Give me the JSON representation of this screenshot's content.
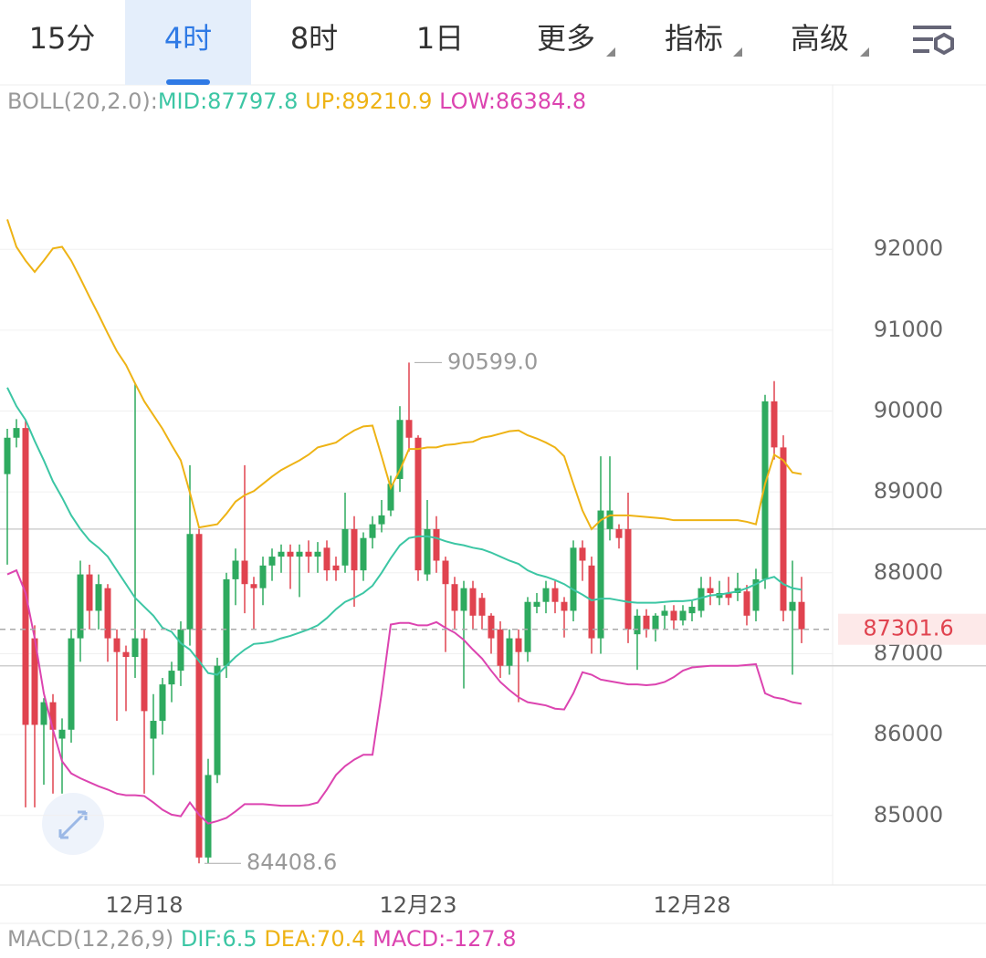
{
  "tabs": {
    "items": [
      "15分",
      "4时",
      "8时",
      "1日",
      "更多",
      "指标",
      "高级"
    ],
    "active": 1
  },
  "chart_data": {
    "type": "candlestick",
    "indicator_label": "BOLL(20,2.0):",
    "categories": [
      null,
      null,
      null,
      null,
      null,
      null,
      null,
      null,
      null,
      null,
      null,
      null,
      null,
      null,
      null,
      "12月18",
      null,
      null,
      null,
      null,
      null,
      null,
      null,
      null,
      null,
      null,
      null,
      null,
      null,
      null,
      null,
      null,
      null,
      null,
      null,
      null,
      null,
      null,
      null,
      null,
      null,
      null,
      null,
      null,
      null,
      "12月23",
      null,
      null,
      null,
      null,
      null,
      null,
      null,
      null,
      null,
      null,
      null,
      null,
      null,
      null,
      null,
      null,
      null,
      null,
      null,
      null,
      null,
      null,
      null,
      null,
      null,
      null,
      null,
      null,
      null,
      "12月28",
      null,
      null,
      null,
      null,
      null,
      null,
      null,
      null,
      null,
      null,
      null,
      null
    ],
    "open": [
      89220,
      89670,
      89790,
      87190,
      86120,
      86400,
      85950,
      86060,
      87190,
      87980,
      87530,
      87810,
      87190,
      87020,
      86960,
      87190,
      85950,
      86170,
      86620,
      86790,
      87300,
      88480,
      84480,
      85500,
      86850,
      87920,
      88150,
      87860,
      87810,
      88090,
      88200,
      88260,
      88200,
      88260,
      88200,
      88310,
      88090,
      88090,
      88540,
      88030,
      88430,
      88600,
      88770,
      89160,
      89890,
      89670,
      87980,
      88540,
      88150,
      87860,
      87530,
      87810,
      87690,
      87470,
      87300,
      86850,
      87190,
      87020,
      87580,
      87640,
      87810,
      87640,
      87530,
      88310,
      88090,
      87190,
      88540,
      88540,
      88540,
      87240,
      87470,
      87300,
      87470,
      87530,
      87410,
      87500,
      87530,
      87810,
      87690,
      87750,
      87750,
      87770,
      87530,
      87920,
      90120,
      89550,
      87530,
      87640
    ],
    "high": [
      89780,
      89900,
      89890,
      87350,
      86450,
      86500,
      86200,
      87300,
      88150,
      88100,
      87980,
      87860,
      87300,
      87100,
      90340,
      87300,
      86500,
      86700,
      86900,
      87400,
      89330,
      88540,
      85700,
      86950,
      88000,
      88300,
      89330,
      87950,
      88200,
      88300,
      88350,
      88350,
      88350,
      88400,
      88380,
      88400,
      88200,
      88990,
      88700,
      88500,
      88700,
      88900,
      89200,
      90060,
      90599,
      89700,
      88900,
      88700,
      88200,
      87950,
      87900,
      87900,
      87750,
      87500,
      87400,
      87300,
      87300,
      87700,
      87750,
      87900,
      87900,
      87700,
      88400,
      88400,
      88200,
      89440,
      89440,
      88600,
      88990,
      87550,
      87550,
      87500,
      87600,
      87600,
      87600,
      87650,
      87950,
      87950,
      87900,
      87950,
      88000,
      87850,
      88050,
      90200,
      90370,
      89700,
      88150,
      87950
    ],
    "low": [
      88100,
      89550,
      85100,
      85100,
      85380,
      85270,
      85270,
      85900,
      86900,
      87300,
      87300,
      86900,
      86170,
      86290,
      86700,
      85270,
      85500,
      86000,
      86400,
      86600,
      87100,
      84408.6,
      84410,
      85400,
      86700,
      87600,
      87500,
      87300,
      87600,
      87900,
      88000,
      87800,
      87700,
      88000,
      88000,
      87900,
      87900,
      88000,
      87580,
      87900,
      88300,
      88500,
      88700,
      89000,
      89500,
      87900,
      87900,
      88000,
      87020,
      87300,
      86570,
      87300,
      87300,
      87000,
      86700,
      86740,
      86400,
      86900,
      87500,
      87500,
      87500,
      87200,
      87400,
      87900,
      87000,
      87000,
      88400,
      88300,
      87130,
      86800,
      87200,
      87150,
      87300,
      87300,
      87350,
      87400,
      87450,
      87600,
      87600,
      87600,
      87650,
      87350,
      87400,
      87800,
      89400,
      87400,
      86740,
      87130
    ],
    "close": [
      89670,
      89790,
      86120,
      86120,
      86400,
      86060,
      86060,
      87190,
      87980,
      87530,
      87860,
      87190,
      87020,
      86960,
      87190,
      86290,
      86170,
      86620,
      86790,
      87300,
      88480,
      84480,
      85500,
      86850,
      87920,
      88150,
      87860,
      87810,
      88090,
      88200,
      88260,
      88200,
      88260,
      88200,
      88260,
      88030,
      88030,
      88540,
      88030,
      88430,
      88600,
      88710,
      89100,
      89890,
      89670,
      88030,
      88540,
      88150,
      87860,
      87530,
      87810,
      87470,
      87470,
      87190,
      86850,
      87190,
      87020,
      87640,
      87640,
      87810,
      87640,
      87530,
      88310,
      88150,
      87190,
      88770,
      88770,
      88430,
      87300,
      87470,
      87300,
      87470,
      87530,
      87410,
      87530,
      87580,
      87810,
      87750,
      87750,
      87690,
      87810,
      87470,
      87920,
      90120,
      89550,
      87530,
      87640,
      87301.6
    ],
    "up_color": "#2eaa5f",
    "down_color": "#e0434f",
    "series": [
      {
        "name": "MID:87797.8",
        "color": "#3cc6a4",
        "values": [
          90290,
          90060,
          89890,
          89630,
          89390,
          89130,
          88930,
          88710,
          88540,
          88400,
          88310,
          88200,
          88030,
          87860,
          87690,
          87580,
          87470,
          87320,
          87270,
          87130,
          87050,
          86910,
          86760,
          86740,
          86850,
          86960,
          87050,
          87120,
          87130,
          87150,
          87190,
          87220,
          87260,
          87300,
          87350,
          87440,
          87550,
          87640,
          87690,
          87750,
          87840,
          88000,
          88180,
          88340,
          88430,
          88450,
          88450,
          88430,
          88390,
          88360,
          88340,
          88310,
          88290,
          88250,
          88200,
          88150,
          88110,
          88030,
          87980,
          87950,
          87910,
          87860,
          87790,
          87730,
          87660,
          87680,
          87680,
          87660,
          87640,
          87630,
          87630,
          87630,
          87640,
          87650,
          87650,
          87660,
          87690,
          87720,
          87730,
          87750,
          87770,
          87810,
          87860,
          87920,
          87950,
          87860,
          87810,
          87790
        ]
      },
      {
        "name": "UP:89210.9",
        "color": "#eeb315",
        "values": [
          92370,
          92030,
          91860,
          91720,
          91860,
          92010,
          92030,
          91860,
          91640,
          91410,
          91190,
          90960,
          90740,
          90570,
          90340,
          90120,
          89950,
          89780,
          89580,
          89390,
          88990,
          88560,
          88580,
          88600,
          88730,
          88880,
          88960,
          89010,
          89100,
          89190,
          89270,
          89330,
          89390,
          89460,
          89550,
          89580,
          89610,
          89690,
          89760,
          89810,
          89820,
          89440,
          89050,
          89270,
          89530,
          89530,
          89550,
          89550,
          89580,
          89590,
          89610,
          89620,
          89670,
          89690,
          89720,
          89750,
          89760,
          89700,
          89660,
          89610,
          89550,
          89440,
          89100,
          88770,
          88540,
          88650,
          88710,
          88710,
          88710,
          88700,
          88690,
          88680,
          88670,
          88650,
          88650,
          88650,
          88650,
          88650,
          88650,
          88650,
          88650,
          88630,
          88600,
          89100,
          89460,
          89390,
          89240,
          89220
        ]
      },
      {
        "name": "LOW:86384.8",
        "color": "#dc44b0",
        "values": [
          87980,
          88030,
          87750,
          87190,
          86510,
          86060,
          85670,
          85520,
          85460,
          85410,
          85360,
          85320,
          85270,
          85250,
          85250,
          85240,
          85160,
          85070,
          85010,
          84990,
          85160,
          85010,
          84900,
          84930,
          84970,
          85050,
          85140,
          85140,
          85140,
          85130,
          85120,
          85120,
          85120,
          85130,
          85160,
          85320,
          85500,
          85610,
          85690,
          85750,
          85750,
          86510,
          87360,
          87380,
          87380,
          87350,
          87350,
          87390,
          87320,
          87260,
          87170,
          87050,
          86940,
          86790,
          86650,
          86550,
          86460,
          86400,
          86380,
          86360,
          86320,
          86310,
          86510,
          86770,
          86740,
          86680,
          86660,
          86640,
          86620,
          86620,
          86610,
          86620,
          86650,
          86710,
          86790,
          86830,
          86840,
          86850,
          86850,
          86850,
          86850,
          86860,
          86870,
          86510,
          86460,
          86440,
          86400,
          86380
        ]
      }
    ],
    "ylim": [
      84140,
      94010
    ],
    "yticks": [
      85000,
      86000,
      87000,
      88000,
      89000,
      90000,
      91000,
      92000
    ],
    "grid": true,
    "reference_lines": [
      88540,
      86850
    ],
    "last_price": 87301.6,
    "high_label": "90599.0",
    "low_label": "84408.6"
  },
  "macd": {
    "label": "MACD(12,26,9)",
    "items": [
      {
        "text": "DIF:6.5",
        "color": "#3cc6a4"
      },
      {
        "text": "DEA:70.4",
        "color": "#eeb315"
      },
      {
        "text": "MACD:-127.8",
        "color": "#dc44b0"
      }
    ]
  }
}
